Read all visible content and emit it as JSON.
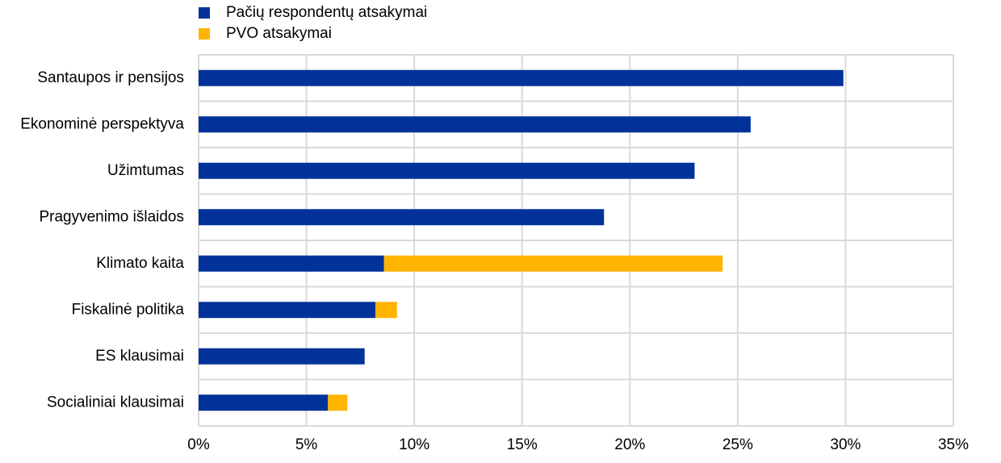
{
  "chart_data": {
    "type": "stacked-bar-horizontal",
    "categories": [
      "Santaupos ir pensijos",
      "Ekonominė perspektyva",
      "Užimtumas",
      "Pragyvenimo išlaidos",
      "Klimato kaita",
      "Fiskalinė politika",
      "ES klausimai",
      "Socialiniai klausimai"
    ],
    "series": [
      {
        "name": "Pačių respondentų atsakymai",
        "color": "#003299",
        "values": [
          29.9,
          25.6,
          23.0,
          18.8,
          8.6,
          8.2,
          7.7,
          6.0
        ]
      },
      {
        "name": "PVO atsakymai",
        "color": "#ffb400",
        "values": [
          0,
          0,
          0,
          0,
          15.7,
          1.0,
          0,
          0.9
        ]
      }
    ],
    "xlim": [
      0,
      35
    ],
    "xticks": [
      {
        "value": 0,
        "label": "0%"
      },
      {
        "value": 5,
        "label": "5%"
      },
      {
        "value": 10,
        "label": "10%"
      },
      {
        "value": 15,
        "label": "15%"
      },
      {
        "value": 20,
        "label": "20%"
      },
      {
        "value": 25,
        "label": "25%"
      },
      {
        "value": 30,
        "label": "30%"
      },
      {
        "value": 35,
        "label": "35%"
      }
    ],
    "grid": true,
    "legend": "top-left"
  }
}
